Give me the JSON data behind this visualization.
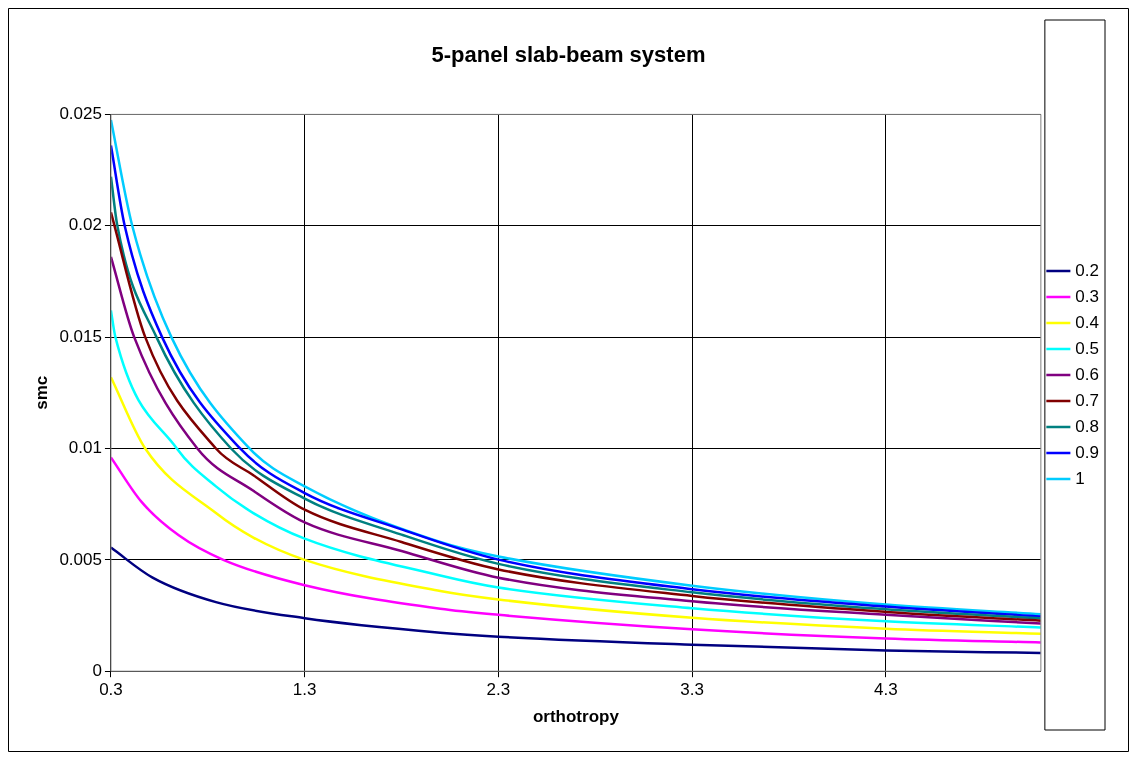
{
  "chart_data": {
    "type": "line",
    "title": "5-panel slab-beam system",
    "xlabel": "orthotropy",
    "ylabel": "smc",
    "series": [
      {
        "name": "0.2",
        "color": "#000080",
        "x": [
          0.3,
          0.515,
          0.842,
          1.3,
          2.0,
          2.3,
          3.3,
          4.3,
          5.1
        ],
        "values": [
          0.00555,
          0.0042,
          0.0031,
          0.00238,
          0.00173,
          0.00155,
          0.00119,
          0.00093,
          0.00082
        ]
      },
      {
        "name": "0.3",
        "color": "#ff00ff",
        "x": [
          0.3,
          0.458,
          0.65,
          0.88,
          1.3,
          2.0,
          2.3,
          3.3,
          4.3,
          5.1
        ],
        "values": [
          0.0096,
          0.0076,
          0.0061,
          0.005,
          0.00386,
          0.0028,
          0.00253,
          0.00188,
          0.00147,
          0.00129
        ]
      },
      {
        "name": "0.4",
        "color": "#ffff00",
        "x": [
          0.3,
          0.477,
          0.842,
          1.035,
          1.3,
          2.0,
          2.3,
          3.3,
          4.3,
          5.1
        ],
        "values": [
          0.0132,
          0.01,
          0.0071,
          0.006,
          0.005,
          0.0036,
          0.00322,
          0.0024,
          0.00191,
          0.00168
        ]
      },
      {
        "name": "0.5",
        "color": "#00ffff",
        "x": [
          0.3,
          0.323,
          0.64,
          0.842,
          1.035,
          1.3,
          2.0,
          2.3,
          3.3,
          4.3,
          5.1
        ],
        "values": [
          0.0162,
          0.015,
          0.01,
          0.0083,
          0.0071,
          0.00595,
          0.0043,
          0.00376,
          0.00283,
          0.00224,
          0.00196
        ]
      },
      {
        "name": "0.6",
        "color": "#800080",
        "x": [
          0.3,
          0.42,
          0.746,
          1.035,
          1.3,
          1.8,
          2.3,
          3.3,
          4.3,
          5.1
        ],
        "values": [
          0.0186,
          0.015,
          0.01,
          0.0081,
          0.00668,
          0.0054,
          0.0042,
          0.00314,
          0.00253,
          0.00214
        ]
      },
      {
        "name": "0.7",
        "color": "#800000",
        "x": [
          0.3,
          0.477,
          0.842,
          1.035,
          1.3,
          1.8,
          2.3,
          3.3,
          4.3,
          5.1
        ],
        "values": [
          0.0206,
          0.015,
          0.01,
          0.0088,
          0.00725,
          0.0058,
          0.00457,
          0.00338,
          0.00266,
          0.00227
        ]
      },
      {
        "name": "0.8",
        "color": "#008080",
        "x": [
          0.3,
          0.333,
          0.535,
          0.92,
          1.3,
          1.8,
          2.3,
          3.3,
          4.3,
          5.1
        ],
        "values": [
          0.0222,
          0.02,
          0.015,
          0.01,
          0.00775,
          0.00613,
          0.00482,
          0.00354,
          0.00278,
          0.00237
        ]
      },
      {
        "name": "0.9",
        "color": "#0000ff",
        "x": [
          0.3,
          0.371,
          0.564,
          0.967,
          1.3,
          1.8,
          2.3,
          3.3,
          4.3,
          5.1
        ],
        "values": [
          0.0236,
          0.02,
          0.015,
          0.01,
          0.008,
          0.00637,
          0.00501,
          0.00368,
          0.0029,
          0.00246
        ]
      },
      {
        "name": "1",
        "color": "#00ccff",
        "x": [
          0.3,
          0.41,
          0.612,
          1.015,
          1.3,
          2.0,
          2.3,
          3.3,
          4.3,
          5.1
        ],
        "values": [
          0.02475,
          0.02,
          0.015,
          0.01,
          0.0083,
          0.0058,
          0.00515,
          0.00384,
          0.00299,
          0.00256
        ]
      }
    ],
    "xlim": [
      0.3,
      5.1
    ],
    "xticks": [
      0.3,
      1.3,
      2.3,
      3.3,
      4.3
    ],
    "ylim": [
      0,
      0.025
    ],
    "yticks": [
      0,
      0.005,
      0.01,
      0.015,
      0.02,
      0.025
    ],
    "grid": true,
    "legend": "right",
    "marker": "none",
    "line_style": "solid"
  }
}
